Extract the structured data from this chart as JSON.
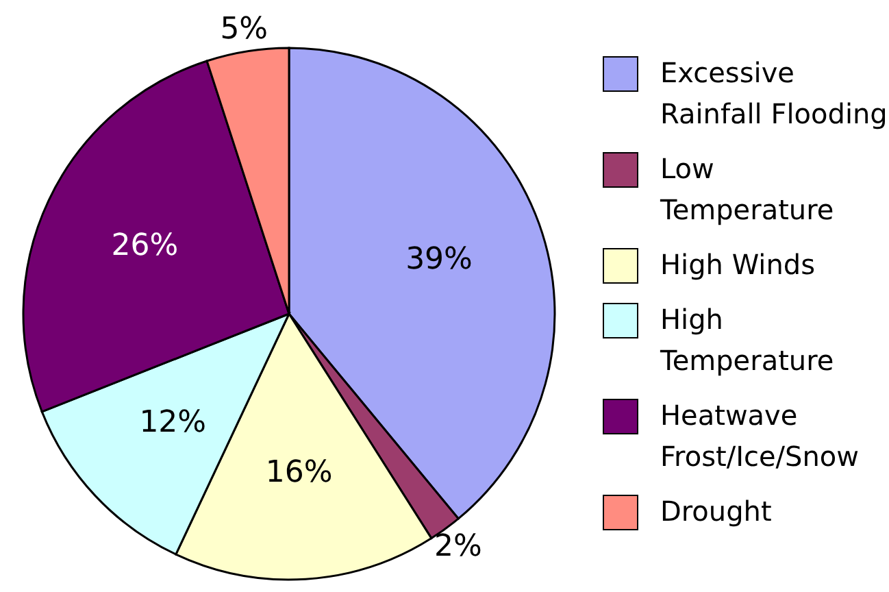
{
  "chart_data": {
    "type": "pie",
    "categories": [
      "Excessive Rainfall Flooding",
      "Low Temperature",
      "High Winds",
      "High Temperature",
      "Heatwave Frost/Ice/Snow",
      "Drought"
    ],
    "values": [
      39,
      2,
      16,
      12,
      26,
      5
    ],
    "value_labels": [
      "39%",
      "2%",
      "16%",
      "12%",
      "26%",
      "5%"
    ],
    "colors": [
      "#a3a6f7",
      "#9c3c6c",
      "#ffffcc",
      "#ccffff",
      "#720070",
      "#ff8c80"
    ],
    "legend": "right"
  }
}
